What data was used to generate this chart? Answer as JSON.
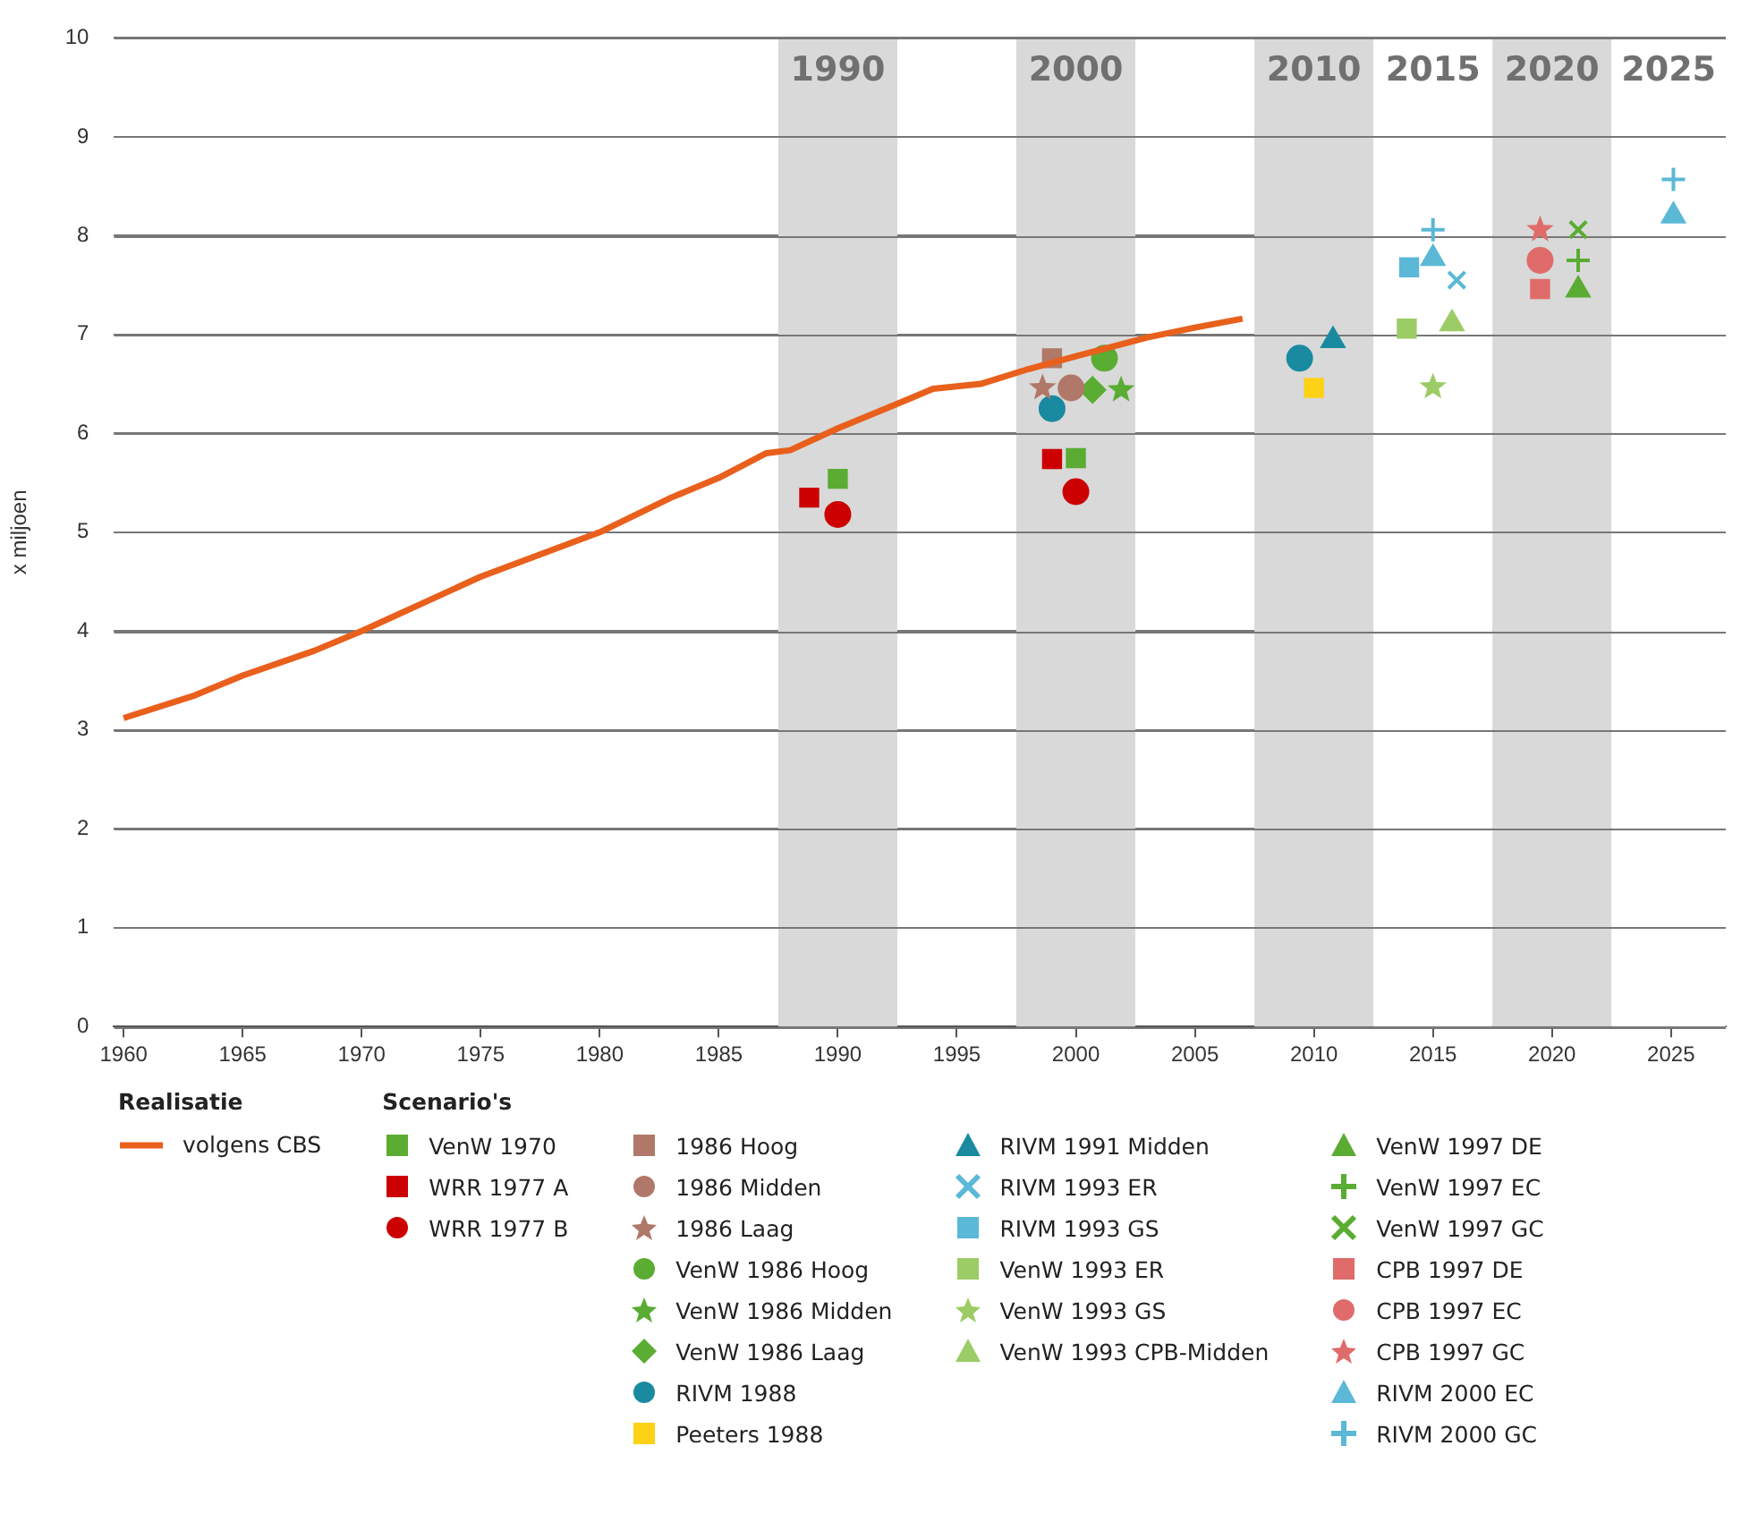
{
  "chart_data": {
    "type": "scatter",
    "ylabel": "x miljoen",
    "legend_title": "Scenario's",
    "legend": "bottom",
    "grid": "y",
    "xlim": [
      1959.6,
      2027.3
    ],
    "ylim": [
      0,
      10
    ],
    "xticks": [
      1960,
      1965,
      1970,
      1975,
      1980,
      1985,
      1990,
      1995,
      2000,
      2005,
      2010,
      2015,
      2020,
      2025
    ],
    "yticks": [
      0,
      1,
      2,
      3,
      4,
      5,
      6,
      7,
      8,
      9,
      10
    ],
    "bands": [
      {
        "axis": "x",
        "from": 1987.5,
        "to": 1992.5,
        "label": "1990",
        "color": "#d9d9d9"
      },
      {
        "axis": "x",
        "from": 1997.5,
        "to": 2002.5,
        "label": "2000",
        "color": "#d9d9d9"
      },
      {
        "axis": "x",
        "from": 2007.5,
        "to": 2012.5,
        "label": "2010",
        "color": "#d9d9d9"
      },
      {
        "axis": "x",
        "from": 2012.5,
        "to": 2017.5,
        "label": "2015",
        "color": "#ffffff"
      },
      {
        "axis": "x",
        "from": 2017.5,
        "to": 2022.5,
        "label": "2020",
        "color": "#d9d9d9"
      },
      {
        "axis": "x",
        "from": 2022.5,
        "to": 2027.3,
        "label": "2025",
        "color": "#ffffff"
      }
    ],
    "annotations": [
      "Realisatie"
    ],
    "series": [
      {
        "name": "volgens CBS",
        "type": "line",
        "color": "#e8601c",
        "marker": "none",
        "x": [
          1960,
          1963,
          1965,
          1968,
          1970,
          1975,
          1980,
          1983,
          1985,
          1987,
          1988,
          1990,
          1993,
          1994,
          1996,
          1998,
          2000,
          2003,
          2005,
          2007
        ],
        "values": [
          3.12,
          3.35,
          3.55,
          3.8,
          4.0,
          4.55,
          5.0,
          5.35,
          5.55,
          5.8,
          5.83,
          6.05,
          6.35,
          6.45,
          6.5,
          6.65,
          6.78,
          6.97,
          7.07,
          7.16
        ]
      },
      {
        "name": "VenW 1970",
        "color": "#5aac32",
        "marker": "square",
        "x": [
          1990.0,
          2000.0
        ],
        "values": [
          5.54,
          5.75
        ]
      },
      {
        "name": "WRR 1977 A",
        "color": "#cc0000",
        "marker": "square",
        "x": [
          1988.8,
          1999.0
        ],
        "values": [
          5.35,
          5.74
        ]
      },
      {
        "name": "WRR 1977 B",
        "color": "#cc0000",
        "marker": "circle",
        "x": [
          1990.0,
          2000.0
        ],
        "values": [
          5.18,
          5.41
        ]
      },
      {
        "name": "1986 Hoog",
        "color": "#b07868",
        "marker": "square",
        "x": [
          1999.0
        ],
        "values": [
          6.76
        ]
      },
      {
        "name": "1986 Midden",
        "color": "#b07868",
        "marker": "circle",
        "x": [
          1999.8
        ],
        "values": [
          6.46
        ]
      },
      {
        "name": "1986 Laag",
        "color": "#b07868",
        "marker": "star",
        "x": [
          1998.6
        ],
        "values": [
          6.46
        ]
      },
      {
        "name": "VenW 1986 Hoog",
        "color": "#5aac32",
        "marker": "circle",
        "x": [
          2001.2
        ],
        "values": [
          6.76
        ]
      },
      {
        "name": "VenW 1986 Midden",
        "color": "#5aac32",
        "marker": "star",
        "x": [
          2001.9
        ],
        "values": [
          6.44
        ]
      },
      {
        "name": "VenW 1986 Laag",
        "color": "#5aac32",
        "marker": "diamond",
        "x": [
          2000.7
        ],
        "values": [
          6.44
        ]
      },
      {
        "name": "RIVM 1988",
        "color": "#1a8aa0",
        "marker": "circle",
        "x": [
          1999.0,
          2009.4
        ],
        "values": [
          6.25,
          6.76
        ]
      },
      {
        "name": "Peeters 1988",
        "color": "#fcd116",
        "marker": "square",
        "x": [
          2010.0
        ],
        "values": [
          6.46
        ]
      },
      {
        "name": "RIVM 1991 Midden",
        "color": "#1a8aa0",
        "marker": "triangle",
        "x": [
          2010.8
        ],
        "values": [
          6.94
        ]
      },
      {
        "name": "RIVM 1993 ER",
        "color": "#5bb8d6",
        "marker": "cross",
        "x": [
          2016.0
        ],
        "values": [
          7.55
        ]
      },
      {
        "name": "RIVM 1993 GS",
        "color": "#5bb8d6",
        "marker": "square",
        "x": [
          2014.0
        ],
        "values": [
          7.68
        ]
      },
      {
        "name": "VenW 1993 ER",
        "color": "#9ccc65",
        "marker": "square",
        "x": [
          2013.9
        ],
        "values": [
          7.06
        ]
      },
      {
        "name": "VenW 1993 GS",
        "color": "#9ccc65",
        "marker": "star",
        "x": [
          2015.0
        ],
        "values": [
          6.47
        ]
      },
      {
        "name": "VenW 1993 CPB-Midden",
        "color": "#9ccc65",
        "marker": "triangle",
        "x": [
          2015.8
        ],
        "values": [
          7.11
        ]
      },
      {
        "name": "VenW 1997 DE",
        "color": "#5aac32",
        "marker": "triangle",
        "x": [
          2021.1
        ],
        "values": [
          7.45
        ]
      },
      {
        "name": "VenW 1997 EC",
        "color": "#5aac32",
        "marker": "plus",
        "x": [
          2021.1
        ],
        "values": [
          7.75
        ]
      },
      {
        "name": "VenW 1997 GC",
        "color": "#5aac32",
        "marker": "cross",
        "x": [
          2021.1
        ],
        "values": [
          8.06
        ]
      },
      {
        "name": "CPB 1997 DE",
        "color": "#e06b6b",
        "marker": "square",
        "x": [
          2019.5
        ],
        "values": [
          7.46
        ]
      },
      {
        "name": "CPB 1997 EC",
        "color": "#e06b6b",
        "marker": "circle",
        "x": [
          2019.5
        ],
        "values": [
          7.75
        ]
      },
      {
        "name": "CPB 1997 GC",
        "color": "#e06b6b",
        "marker": "star",
        "x": [
          2019.5
        ],
        "values": [
          8.06
        ]
      },
      {
        "name": "RIVM 2000 EC",
        "color": "#5bb8d6",
        "marker": "triangle",
        "x": [
          2015.0,
          2025.1
        ],
        "values": [
          7.77,
          8.2
        ]
      },
      {
        "name": "RIVM 2000 GC",
        "color": "#5bb8d6",
        "marker": "plus",
        "x": [
          2015.0,
          2025.1
        ],
        "values": [
          8.06,
          8.57
        ]
      }
    ]
  }
}
